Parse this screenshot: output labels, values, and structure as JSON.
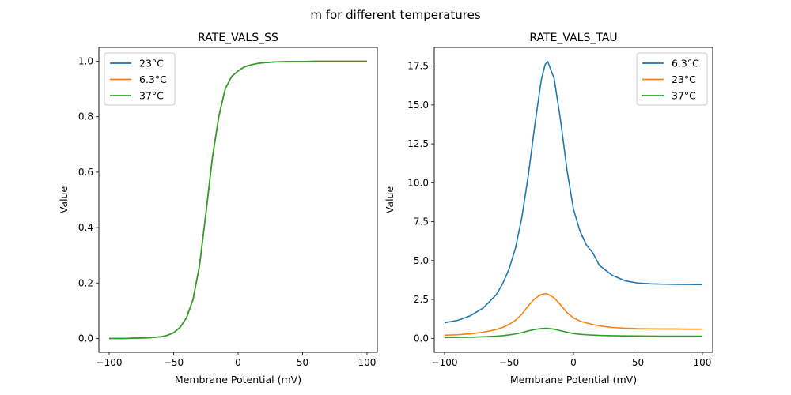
{
  "figure": {
    "title": "m for different temperatures"
  },
  "chart_data": [
    {
      "type": "line",
      "title": "RATE_VALS_SS",
      "xlabel": "Membrane Potential (mV)",
      "ylabel": "Value",
      "xlim": [
        -108,
        108
      ],
      "ylim": [
        -0.05,
        1.05
      ],
      "xticks": [
        -100,
        -50,
        0,
        50,
        100
      ],
      "xtick_labels": [
        "−100",
        "−50",
        "0",
        "50",
        "100"
      ],
      "yticks": [
        0.0,
        0.2,
        0.4,
        0.6,
        0.8,
        1.0
      ],
      "ytick_labels": [
        "0.0",
        "0.2",
        "0.4",
        "0.6",
        "0.8",
        "1.0"
      ],
      "grid": false,
      "legend_position": "upper-left",
      "x": [
        -100,
        -90,
        -80,
        -70,
        -60,
        -55,
        -50,
        -45,
        -40,
        -35,
        -30,
        -25,
        -20,
        -15,
        -10,
        -5,
        0,
        5,
        10,
        15,
        20,
        30,
        40,
        50,
        60,
        70,
        80,
        90,
        100
      ],
      "series": [
        {
          "name": "23°C",
          "color": "#1f77b4",
          "values": [
            0.0,
            0.0,
            0.001,
            0.002,
            0.006,
            0.011,
            0.021,
            0.04,
            0.075,
            0.14,
            0.26,
            0.45,
            0.65,
            0.8,
            0.9,
            0.945,
            0.965,
            0.98,
            0.987,
            0.992,
            0.995,
            0.998,
            0.999,
            0.999,
            1.0,
            1.0,
            1.0,
            1.0,
            1.0
          ]
        },
        {
          "name": "6.3°C",
          "color": "#ff7f0e",
          "values": [
            0.0,
            0.0,
            0.001,
            0.002,
            0.006,
            0.011,
            0.021,
            0.04,
            0.075,
            0.14,
            0.26,
            0.45,
            0.65,
            0.8,
            0.9,
            0.945,
            0.965,
            0.98,
            0.987,
            0.992,
            0.995,
            0.998,
            0.999,
            0.999,
            1.0,
            1.0,
            1.0,
            1.0,
            1.0
          ]
        },
        {
          "name": "37°C",
          "color": "#2ca02c",
          "values": [
            0.0,
            0.0,
            0.001,
            0.002,
            0.006,
            0.011,
            0.021,
            0.04,
            0.075,
            0.14,
            0.26,
            0.45,
            0.65,
            0.8,
            0.9,
            0.945,
            0.965,
            0.98,
            0.987,
            0.992,
            0.995,
            0.998,
            0.999,
            0.999,
            1.0,
            1.0,
            1.0,
            1.0,
            1.0
          ]
        }
      ]
    },
    {
      "type": "line",
      "title": "RATE_VALS_TAU",
      "xlabel": "Membrane Potential (mV)",
      "ylabel": "Value",
      "xlim": [
        -108,
        108
      ],
      "ylim": [
        -0.9,
        18.7
      ],
      "xticks": [
        -100,
        -50,
        0,
        50,
        100
      ],
      "xtick_labels": [
        "−100",
        "−50",
        "0",
        "50",
        "100"
      ],
      "yticks": [
        0.0,
        2.5,
        5.0,
        7.5,
        10.0,
        12.5,
        15.0,
        17.5
      ],
      "ytick_labels": [
        "0.0",
        "2.5",
        "5.0",
        "7.5",
        "10.0",
        "12.5",
        "15.0",
        "17.5"
      ],
      "grid": false,
      "legend_position": "upper-right",
      "x": [
        -100,
        -90,
        -80,
        -70,
        -60,
        -55,
        -50,
        -45,
        -40,
        -35,
        -30,
        -25,
        -22,
        -20,
        -15,
        -10,
        -5,
        0,
        5,
        10,
        15,
        20,
        30,
        40,
        50,
        60,
        70,
        80,
        90,
        100
      ],
      "series": [
        {
          "name": "6.3°C",
          "color": "#1f77b4",
          "values": [
            1.0,
            1.15,
            1.45,
            1.95,
            2.8,
            3.5,
            4.45,
            5.8,
            7.8,
            10.5,
            13.7,
            16.6,
            17.6,
            17.8,
            16.7,
            14.0,
            10.8,
            8.3,
            6.9,
            6.0,
            5.5,
            4.7,
            4.05,
            3.7,
            3.55,
            3.5,
            3.48,
            3.47,
            3.46,
            3.45
          ]
        },
        {
          "name": "23°C",
          "color": "#ff7f0e",
          "values": [
            0.2,
            0.23,
            0.29,
            0.39,
            0.56,
            0.7,
            0.89,
            1.16,
            1.56,
            2.1,
            2.55,
            2.82,
            2.87,
            2.85,
            2.6,
            2.15,
            1.65,
            1.32,
            1.11,
            0.99,
            0.89,
            0.8,
            0.7,
            0.65,
            0.62,
            0.61,
            0.6,
            0.6,
            0.59,
            0.59
          ]
        },
        {
          "name": "37°C",
          "color": "#2ca02c",
          "values": [
            0.05,
            0.06,
            0.07,
            0.1,
            0.14,
            0.17,
            0.22,
            0.28,
            0.37,
            0.48,
            0.57,
            0.63,
            0.645,
            0.64,
            0.59,
            0.49,
            0.39,
            0.31,
            0.26,
            0.23,
            0.21,
            0.19,
            0.17,
            0.155,
            0.15,
            0.145,
            0.14,
            0.14,
            0.14,
            0.14
          ]
        }
      ]
    }
  ]
}
